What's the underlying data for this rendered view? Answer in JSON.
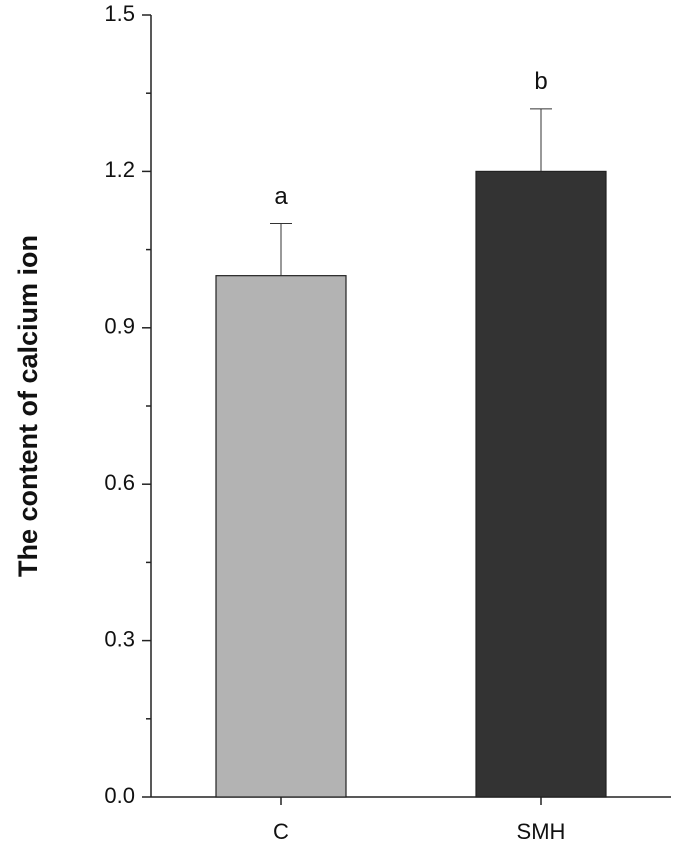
{
  "chart_data": {
    "type": "bar",
    "y_label": "The content of calcium ion",
    "categories": [
      "C",
      "SMH"
    ],
    "values": [
      1.0,
      1.2
    ],
    "errors": [
      0.1,
      0.12
    ],
    "letters": [
      "a",
      "b"
    ],
    "colors": [
      "#b3b3b3",
      "#333333"
    ],
    "ylim": [
      0,
      1.5
    ],
    "yticks": [
      {
        "value": 0,
        "label": "0.0"
      },
      0.3,
      0.6,
      0.9,
      1.2,
      1.5
    ],
    "minor_yticks": [
      0.15,
      0.45,
      0.75,
      1.05,
      1.35
    ],
    "grid": false
  }
}
